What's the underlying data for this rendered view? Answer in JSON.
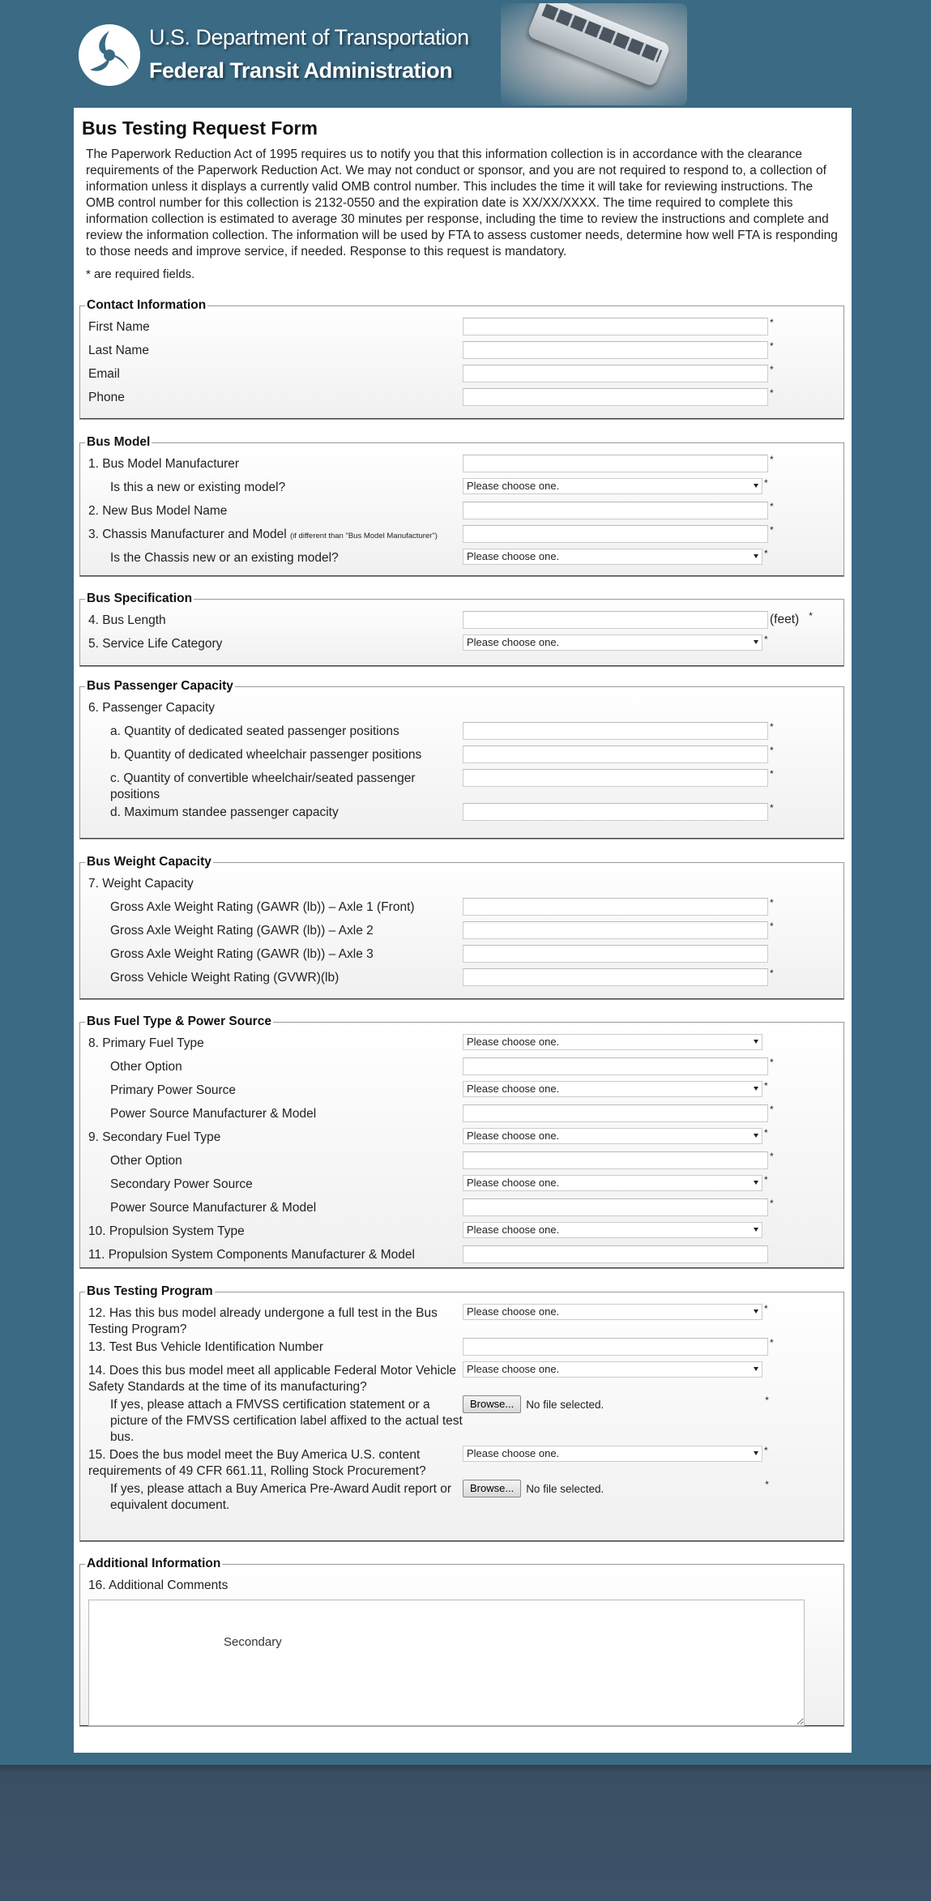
{
  "header": {
    "line1": "U.S. Department of Transportation",
    "line2": "Federal Transit Administration",
    "logo_icon": "dot-triskelion-logo",
    "photo": "articulated-bus-photo"
  },
  "form": {
    "title": "Bus Testing Request Form",
    "intro": "The Paperwork Reduction Act of 1995 requires us to notify you that this information collection is in accordance with the clearance requirements of the Paperwork Reduction Act. We may not conduct or sponsor, and you are not required to respond to, a collection of information unless it displays a currently valid OMB control number. This includes the time it will take for reviewing instructions. The OMB control number for this collection is 2132-0550 and the expiration date is XX/XX/XXXX. The time required to complete this information collection is estimated to average 30 minutes per response, including the time to review the instructions and complete and review the information collection. The information will be used by FTA to assess customer needs, determine how well FTA is responding to those needs and improve service, if needed. Response to this request is mandatory.",
    "required_note": "* are required fields.",
    "select_placeholder": "Please choose one.",
    "browse_label": "Browse...",
    "no_file": "No file selected.",
    "required_mark": "*"
  },
  "sections": [
    {
      "legend": "Contact Information",
      "rows": [
        {
          "label": "First Name",
          "type": "text",
          "required": true
        },
        {
          "label": "Last Name",
          "type": "text",
          "required": true
        },
        {
          "label": "Email",
          "type": "text",
          "required": true
        },
        {
          "label": "Phone",
          "type": "text",
          "required": true
        }
      ]
    },
    {
      "legend": "Bus Model",
      "rows": [
        {
          "label": "1. Bus Model Manufacturer",
          "type": "text",
          "required": true
        },
        {
          "label": "Is this a new or existing model?",
          "indent": true,
          "type": "select",
          "required": true
        },
        {
          "label": "2. New Bus Model Name",
          "type": "text",
          "required": true
        },
        {
          "label": "3. Chassis Manufacturer and Model",
          "note": "(if different than \"Bus Model Manufacturer\")",
          "type": "text",
          "required": true
        },
        {
          "label": "Is the Chassis new or an existing model?",
          "indent": true,
          "type": "select",
          "required": true
        }
      ]
    },
    {
      "legend": "Bus Specification",
      "rows": [
        {
          "label": "4. Bus Length",
          "type": "text",
          "suffix": "(feet)",
          "required": true
        },
        {
          "label": "5. Service Life Category",
          "type": "select",
          "required": true
        }
      ]
    },
    {
      "legend": "Bus Passenger Capacity",
      "rows": [
        {
          "label": "6. Passenger Capacity",
          "type": "none"
        },
        {
          "label": "a. Quantity of dedicated seated passenger positions",
          "indent": true,
          "type": "text",
          "required": true
        },
        {
          "label": "b. Quantity of dedicated wheelchair passenger positions",
          "indent": true,
          "type": "text",
          "required": true
        },
        {
          "label": "c. Quantity of convertible wheelchair/seated passenger positions",
          "indent": true,
          "type": "text",
          "required": true
        },
        {
          "label": "d. Maximum standee passenger capacity",
          "indent": true,
          "type": "text",
          "required": true
        }
      ]
    },
    {
      "legend": "Bus Weight Capacity",
      "rows": [
        {
          "label": "7. Weight Capacity",
          "type": "none"
        },
        {
          "label": "Gross Axle Weight Rating (GAWR (lb)) – Axle 1 (Front)",
          "indent": true,
          "type": "text",
          "required": true
        },
        {
          "label": "Gross Axle Weight Rating (GAWR (lb)) – Axle 2",
          "indent": true,
          "type": "text",
          "required": true
        },
        {
          "label": "Gross Axle Weight Rating (GAWR (lb)) – Axle 3",
          "indent": true,
          "type": "text",
          "required": false
        },
        {
          "label": "Gross Vehicle Weight Rating (GVWR)(lb)",
          "indent": true,
          "type": "text",
          "required": true
        }
      ]
    },
    {
      "legend": "Bus Fuel Type & Power Source",
      "rows": [
        {
          "label": "8. Primary Fuel Type",
          "type": "select",
          "required": false
        },
        {
          "label": "Other Option",
          "indent": true,
          "type": "text",
          "required": true
        },
        {
          "label": "Primary Power Source",
          "indent": true,
          "type": "select",
          "required": true
        },
        {
          "label": "Power Source Manufacturer & Model",
          "indent": true,
          "type": "text",
          "required": true
        },
        {
          "label": "9. Secondary Fuel Type",
          "type": "select",
          "required": true
        },
        {
          "label": "Other Option",
          "indent": true,
          "type": "text",
          "required": true
        },
        {
          "label": "Secondary Power Source",
          "indent": true,
          "type": "select",
          "required": true
        },
        {
          "label": "Power Source Manufacturer & Model",
          "indent": true,
          "type": "text",
          "required": true
        },
        {
          "label": "10. Propulsion System Type",
          "type": "select",
          "required": false
        },
        {
          "label": "11. Propulsion System Components Manufacturer & Model",
          "type": "text",
          "required": false
        }
      ]
    },
    {
      "legend": "Bus Testing Program",
      "rows": [
        {
          "label": "12. Has this bus model already undergone a full test in the Bus Testing Program?",
          "type": "select",
          "required": true
        },
        {
          "label": "13. Test Bus Vehicle Identification Number",
          "type": "text",
          "required": true
        },
        {
          "label": "14. Does this bus model meet all applicable Federal Motor Vehicle Safety Standards at the time of its manufacturing?",
          "type": "select",
          "required": false
        },
        {
          "label": "If yes, please attach a FMVSS certification statement or a picture of the FMVSS certification label affixed to the actual test bus.",
          "indent": true,
          "type": "file",
          "required": true
        },
        {
          "label": "15. Does the bus model meet the Buy America U.S. content requirements of 49 CFR 661.11, Rolling Stock Procurement?",
          "type": "select",
          "required": true
        },
        {
          "label": "If yes, please attach a Buy America Pre-Award Audit report or equivalent document.",
          "indent": true,
          "type": "file",
          "required": true
        }
      ]
    },
    {
      "legend": "Additional Information",
      "rows": [
        {
          "label": "16. Additional Comments",
          "type": "none"
        }
      ]
    }
  ],
  "additional": {
    "textarea_text": "Secondary"
  }
}
